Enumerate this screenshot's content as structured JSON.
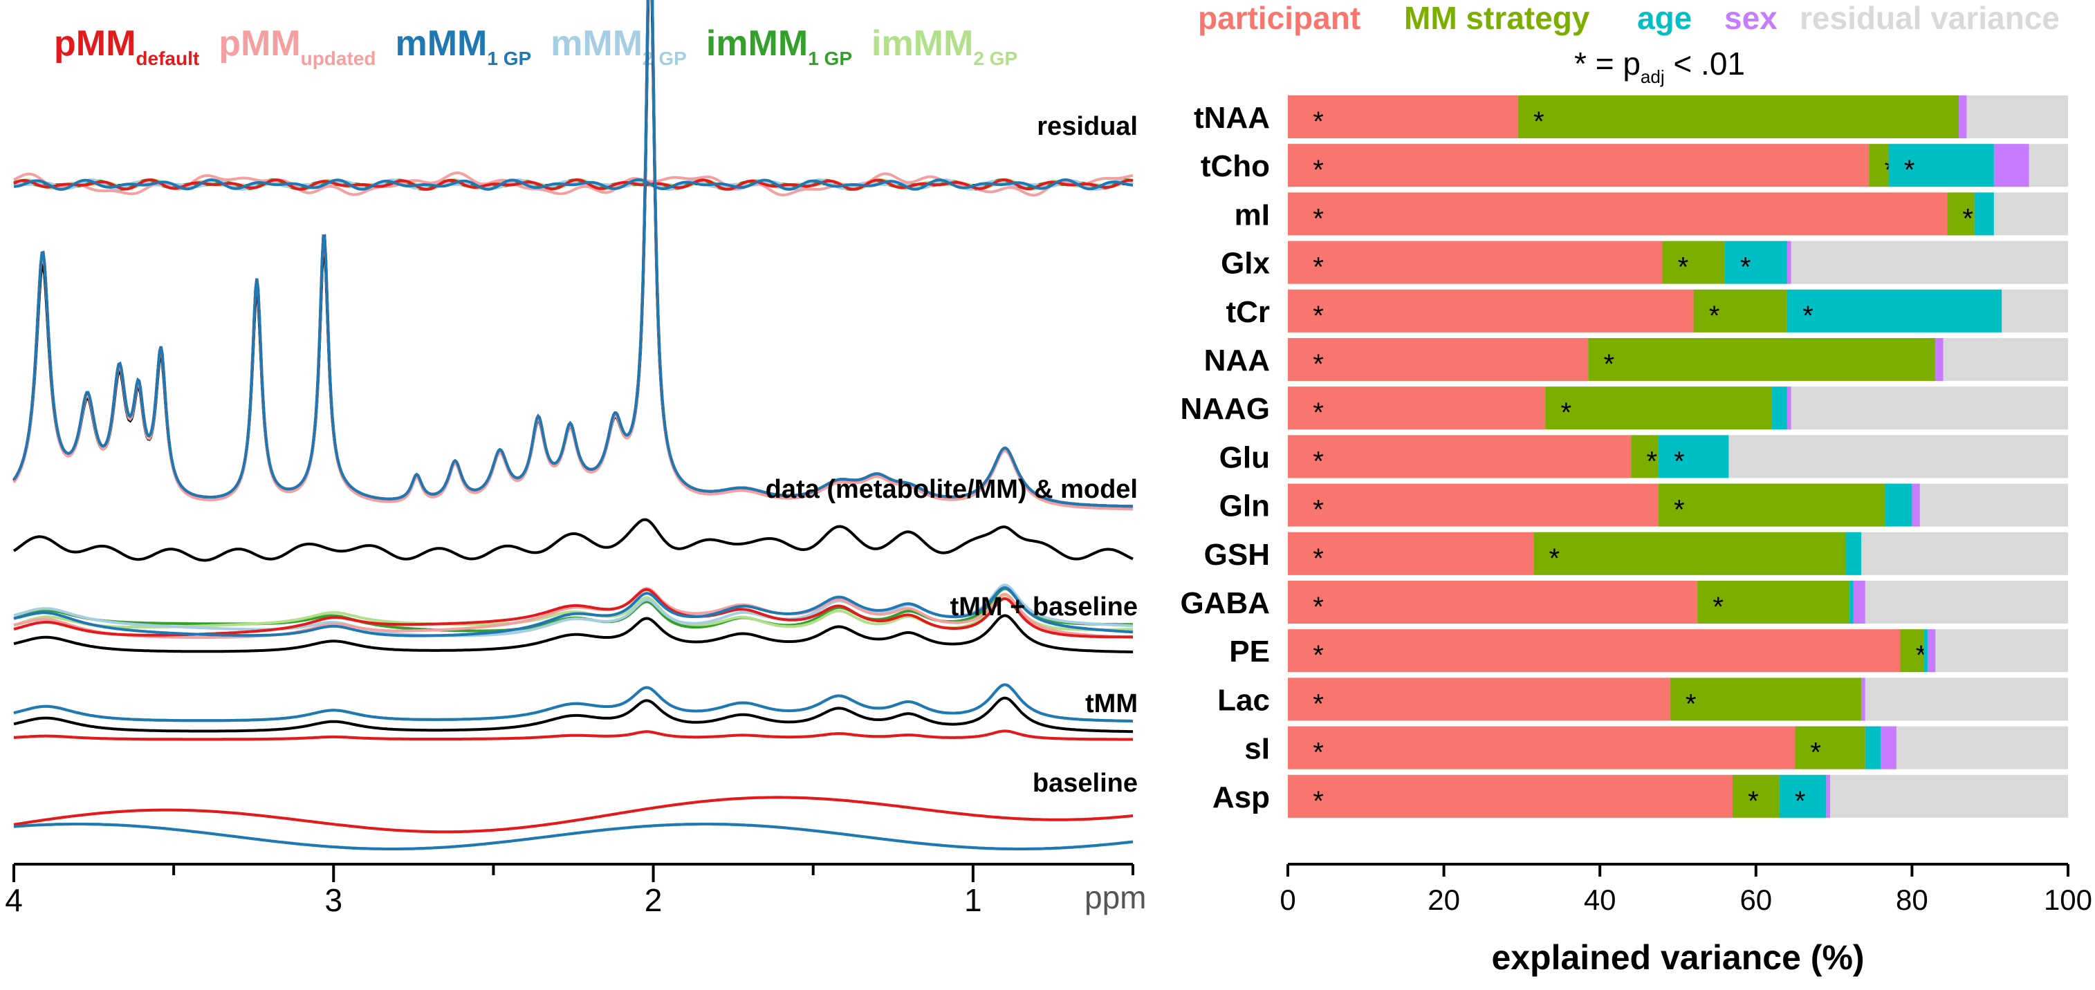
{
  "chart_data": [
    {
      "type": "line",
      "legend": [
        {
          "name": "pMM",
          "sub": "default",
          "color": "#e31a1c"
        },
        {
          "name": "pMM",
          "sub": "updated",
          "color": "#f4a0a0"
        },
        {
          "name": "mMM",
          "sub": "1 GP",
          "color": "#1f78b4"
        },
        {
          "name": "mMM",
          "sub": "2 GP",
          "color": "#a6cee3"
        },
        {
          "name": "imMM",
          "sub": "1 GP",
          "color": "#33a02c"
        },
        {
          "name": "imMM",
          "sub": "2 GP",
          "color": "#b2df8a"
        }
      ],
      "panels": [
        "residual",
        "data (metabolite/MM) & model",
        "tMM + baseline",
        "tMM",
        "baseline"
      ],
      "x_axis": {
        "unit": "ppm",
        "range": [
          4.0,
          0.5
        ],
        "ticks": [
          4,
          3,
          2,
          1
        ],
        "reversed": true
      },
      "data_color": "#000000"
    },
    {
      "type": "bar",
      "stacked": true,
      "orientation": "horizontal",
      "legend": [
        {
          "name": "participant",
          "color": "#f8766d"
        },
        {
          "name": "MM strategy",
          "color": "#7cae00"
        },
        {
          "name": "age",
          "color": "#00bfc4"
        },
        {
          "name": "sex",
          "color": "#c77cff"
        },
        {
          "name": "residual variance",
          "color": "#d9d9d9"
        }
      ],
      "significance_note": {
        "star": "*",
        "eq": "= p",
        "sub": "adj",
        "rest": "< .01"
      },
      "categories": [
        "tNAA",
        "tCho",
        "mI",
        "Glx",
        "tCr",
        "NAA",
        "NAAG",
        "Glu",
        "Gln",
        "GSH",
        "GABA",
        "PE",
        "Lac",
        "sI",
        "Asp"
      ],
      "series": [
        {
          "name": "participant",
          "values": [
            29.5,
            74.5,
            84.5,
            48.0,
            52.0,
            38.5,
            33.0,
            44.0,
            47.5,
            31.5,
            52.5,
            78.5,
            49.0,
            65.0,
            57.0
          ]
        },
        {
          "name": "MM strategy",
          "values": [
            56.5,
            2.5,
            3.5,
            8.0,
            12.0,
            44.5,
            29.0,
            3.5,
            29.0,
            40.0,
            19.5,
            3.0,
            24.5,
            9.0,
            6.0
          ]
        },
        {
          "name": "age",
          "values": [
            0.0,
            13.5,
            2.5,
            8.0,
            27.5,
            0.0,
            2.0,
            9.0,
            3.5,
            2.0,
            0.5,
            0.5,
            0.0,
            2.0,
            6.0
          ]
        },
        {
          "name": "sex",
          "values": [
            1.0,
            4.5,
            0.0,
            0.5,
            0.0,
            1.0,
            0.5,
            0.0,
            1.0,
            0.0,
            1.5,
            1.0,
            0.5,
            2.0,
            0.5
          ]
        }
      ],
      "significant": [
        [
          "participant",
          "MM strategy"
        ],
        [
          "participant",
          "MM strategy",
          "age"
        ],
        [
          "participant",
          "MM strategy"
        ],
        [
          "participant",
          "MM strategy",
          "age"
        ],
        [
          "participant",
          "MM strategy",
          "age"
        ],
        [
          "participant",
          "MM strategy"
        ],
        [
          "participant",
          "MM strategy"
        ],
        [
          "participant",
          "MM strategy",
          "age"
        ],
        [
          "participant",
          "MM strategy"
        ],
        [
          "participant",
          "MM strategy"
        ],
        [
          "participant",
          "MM strategy"
        ],
        [
          "participant",
          "MM strategy"
        ],
        [
          "participant",
          "MM strategy"
        ],
        [
          "participant",
          "MM strategy"
        ],
        [
          "participant",
          "MM strategy",
          "age"
        ]
      ],
      "xlabel": "explained variance (%)",
      "xlim": [
        0,
        100
      ],
      "xticks": [
        0,
        20,
        40,
        60,
        80,
        100
      ],
      "residual_color": "#d9d9d9"
    }
  ]
}
